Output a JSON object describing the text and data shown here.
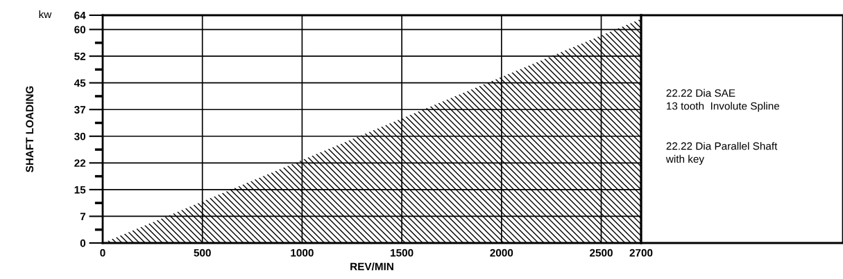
{
  "chart_data": {
    "type": "area",
    "xlabel": "REV/MIN",
    "ylabel": "SHAFT LOADING",
    "x": [
      0,
      2700
    ],
    "series": [
      {
        "color": "#000000",
        "values": [
          0,
          63
        ]
      }
    ],
    "xlim": [
      0,
      2700
    ],
    "ylim": [
      0,
      64
    ],
    "xticks": [
      0,
      500,
      1000,
      1500,
      2000,
      2500,
      2700
    ],
    "yticks": [
      0,
      {
        "value": 3.75,
        "label": null
      },
      {
        "value": 7.5,
        "label": "7"
      },
      {
        "value": 11.25,
        "label": null
      },
      15,
      {
        "value": 18.75,
        "label": null
      },
      {
        "value": 22.5,
        "label": "22"
      },
      {
        "value": 26.25,
        "label": null
      },
      30,
      {
        "value": 33.75,
        "label": null
      },
      {
        "value": 37.5,
        "label": "37"
      },
      {
        "value": 41.25,
        "label": null
      },
      45,
      {
        "value": 48.75,
        "label": null
      },
      {
        "value": 52.5,
        "label": "52"
      },
      {
        "value": 56.25,
        "label": null
      },
      60,
      64
    ],
    "grid": true,
    "annotations": [
      "kw",
      "22.22 Dia SAE\n13 tooth  Involute Spline",
      "22.22 Dia Parallel Shaft\nwith key"
    ]
  }
}
